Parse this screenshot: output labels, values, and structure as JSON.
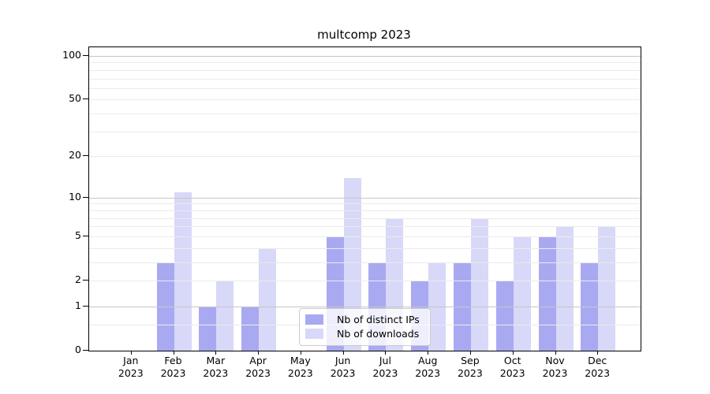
{
  "chart_data": {
    "type": "bar",
    "title": "multcomp 2023",
    "year_label": "2023",
    "months": [
      "Jan",
      "Feb",
      "Mar",
      "Apr",
      "May",
      "Jun",
      "Jul",
      "Aug",
      "Sep",
      "Oct",
      "Nov",
      "Dec"
    ],
    "categories": [
      "Jan 2023",
      "Feb 2023",
      "Mar 2023",
      "Apr 2023",
      "May 2023",
      "Jun 2023",
      "Jul 2023",
      "Aug 2023",
      "Sep 2023",
      "Oct 2023",
      "Nov 2023",
      "Dec 2023"
    ],
    "series": [
      {
        "name": "Nb of distinct IPs",
        "color": "#a9a9f2",
        "values": [
          0,
          3,
          1,
          1,
          0,
          5,
          3,
          2,
          3,
          2,
          5,
          3
        ]
      },
      {
        "name": "Nb of downloads",
        "color": "#d8d8f8",
        "values": [
          0,
          11,
          2,
          4,
          0,
          14,
          7,
          3,
          7,
          5,
          6,
          6
        ]
      }
    ],
    "y_scale": "log1p",
    "ylim": [
      0,
      115
    ],
    "y_tick_labels": [
      0,
      1,
      2,
      5,
      10,
      20,
      50,
      100
    ],
    "y_major_gridlines": [
      1,
      10,
      100
    ],
    "y_minor_gridlines": [
      0.5,
      2,
      3,
      4,
      5,
      6,
      7,
      8,
      9,
      20,
      30,
      40,
      50,
      60,
      70,
      80,
      90
    ],
    "grid": true,
    "legend_position": "lower center",
    "colors": {
      "major_grid": "#c6c6c6",
      "minor_grid": "#ebebeb",
      "spine": "#000000",
      "text": "#000000",
      "legend_border": "#cccccc",
      "legend_background": "rgba(255,255,255,0.8)"
    }
  }
}
